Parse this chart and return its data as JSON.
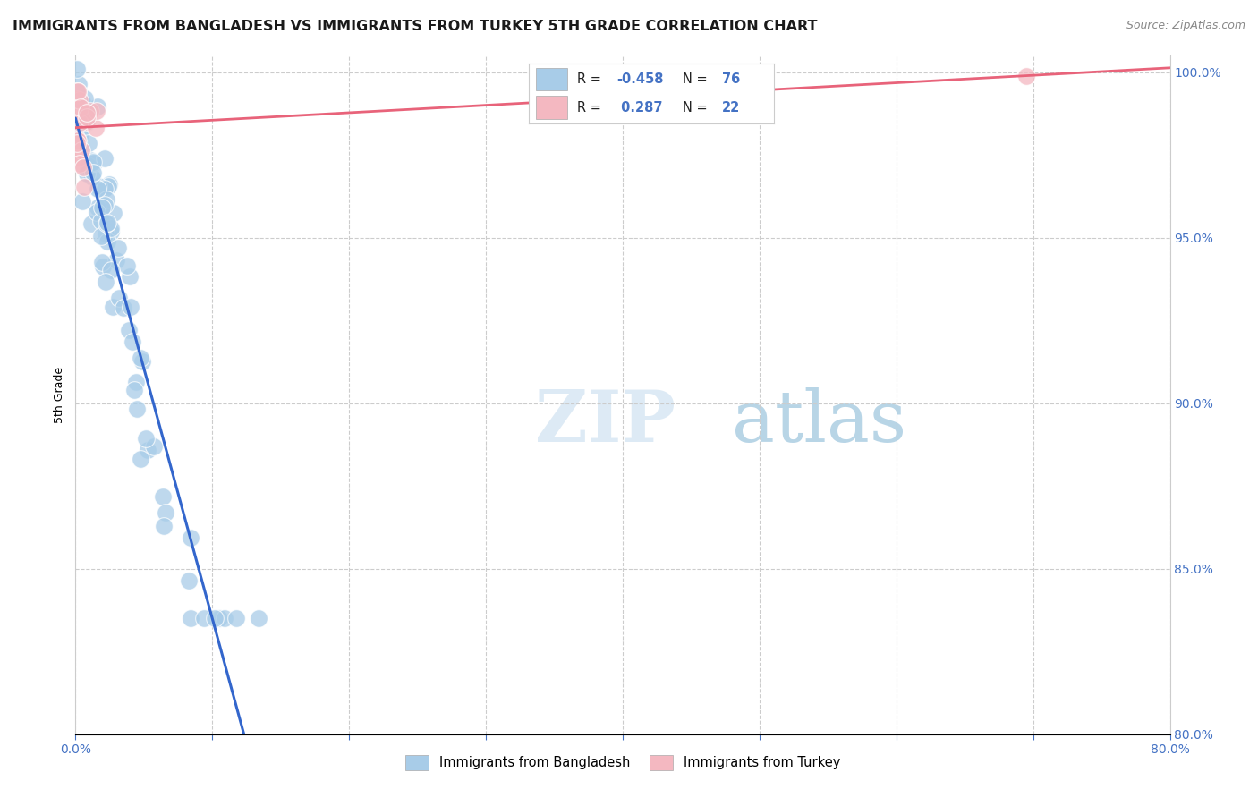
{
  "title": "IMMIGRANTS FROM BANGLADESH VS IMMIGRANTS FROM TURKEY 5TH GRADE CORRELATION CHART",
  "source": "Source: ZipAtlas.com",
  "ylabel": "5th Grade",
  "xmin": 0.0,
  "xmax": 0.8,
  "ymin": 0.8,
  "ymax": 1.005,
  "bangladesh_color": "#a8cce8",
  "turkey_color": "#f4b8c1",
  "bangladesh_line_color": "#3366cc",
  "turkey_line_color": "#e8637a",
  "r_bangladesh": -0.458,
  "n_bangladesh": 76,
  "r_turkey": 0.287,
  "n_turkey": 22,
  "watermark_zip": "ZIP",
  "watermark_atlas": "atlas",
  "title_fontsize": 11.5,
  "axis_label_fontsize": 9,
  "tick_fontsize": 10,
  "right_tick_color": "#4472c4"
}
